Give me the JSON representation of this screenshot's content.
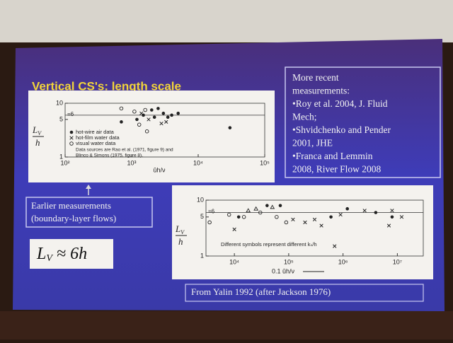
{
  "title": "Vertical CS's: length scale",
  "recent_box": {
    "lines": [
      "More recent",
      "measurements:",
      "•Roy et al. 2004, J. Fluid",
      "Mech;",
      "•Shvidchenko and Pender",
      "2001, JHE",
      "•Franca and Lemmin",
      "2008, River Flow 2008"
    ]
  },
  "earlier_box": {
    "lines": [
      "Earlier measurements",
      "(boundary-layer flows)"
    ]
  },
  "formula": {
    "symbol": "L",
    "subscript": "V",
    "rest": " ≈ 6h"
  },
  "source": "From Yalin 1992 (after Jackson 1976)",
  "plot1": {
    "ylabel": {
      "symbol": "L",
      "subscript": "V",
      "denominator": "h"
    },
    "xlabel": "ūh/ν",
    "xlim": [
      100,
      100000
    ],
    "ylim": [
      1,
      10
    ],
    "xticks": [
      {
        "value": 100,
        "label": "10²"
      },
      {
        "value": 1000,
        "label": "10³"
      },
      {
        "value": 10000,
        "label": "10⁴"
      },
      {
        "value": 100000,
        "label": "10⁵"
      }
    ],
    "yticks": [
      10,
      5,
      1
    ],
    "ref_line": {
      "value": 6,
      "label": "=6"
    },
    "note": [
      "Data sources are Rao et al. (1971, figure 9) and",
      "Blinco & Simons (1975, figure 8)."
    ],
    "series": [
      {
        "name": "hot-wire air data",
        "symbol": "dot",
        "x": [
          700,
          1200,
          1500,
          2000,
          2200,
          2500,
          3000,
          3500,
          4000,
          5000,
          30000
        ],
        "values": [
          4.5,
          5,
          6,
          7.5,
          5.5,
          8,
          6.5,
          5.5,
          6,
          6.5,
          3.5
        ]
      },
      {
        "name": "hot-film water data",
        "symbol": "x",
        "x": [
          1400,
          1800,
          2800,
          3300
        ],
        "values": [
          6.5,
          5,
          4.2,
          4.5
        ]
      },
      {
        "name": "visual water data",
        "symbol": "open",
        "x": [
          700,
          1100,
          1300,
          1600,
          1700
        ],
        "values": [
          8,
          7,
          4,
          7.5,
          3
        ]
      }
    ]
  },
  "plot2": {
    "ylabel": {
      "symbol": "L",
      "subscript": "V",
      "denominator": "h"
    },
    "xlabel": "0.1 ūh/ν",
    "xlim": [
      3000,
      30000000
    ],
    "ylim": [
      1,
      10
    ],
    "xticks": [
      {
        "value": 10000,
        "label": "10⁴"
      },
      {
        "value": 100000,
        "label": "10⁵"
      },
      {
        "value": 1000000,
        "label": "10⁶"
      },
      {
        "value": 10000000,
        "label": "10⁷"
      }
    ],
    "yticks": [
      10,
      5,
      1
    ],
    "ref_line": {
      "value": 6,
      "label": "=6"
    },
    "note": "Different symbols represent different kₛ/h",
    "points": {
      "x": [
        3500,
        8000,
        10000,
        12000,
        15000,
        18000,
        25000,
        30000,
        40000,
        50000,
        60000,
        70000,
        90000,
        120000,
        200000,
        300000,
        400000,
        600000,
        700000,
        900000,
        1200000,
        2500000,
        4000000,
        7000000,
        8000000,
        12000000,
        8000000
      ],
      "y": [
        4,
        5.5,
        3,
        5,
        5,
        6.5,
        7,
        6,
        8,
        7.5,
        5,
        8,
        4,
        4.5,
        4,
        4.5,
        3.5,
        5,
        1.5,
        5.5,
        7,
        6.5,
        6,
        3.5,
        6.5,
        5,
        5
      ],
      "symbol": [
        "open",
        "open",
        "x",
        "dot",
        "open",
        "triangle",
        "triangle",
        "open",
        "dot",
        "triangle",
        "open",
        "dot",
        "open",
        "x",
        "x",
        "x",
        "x",
        "dot",
        "x",
        "x",
        "dot",
        "x",
        "dot",
        "x",
        "x",
        "x",
        "dot"
      ]
    }
  }
}
